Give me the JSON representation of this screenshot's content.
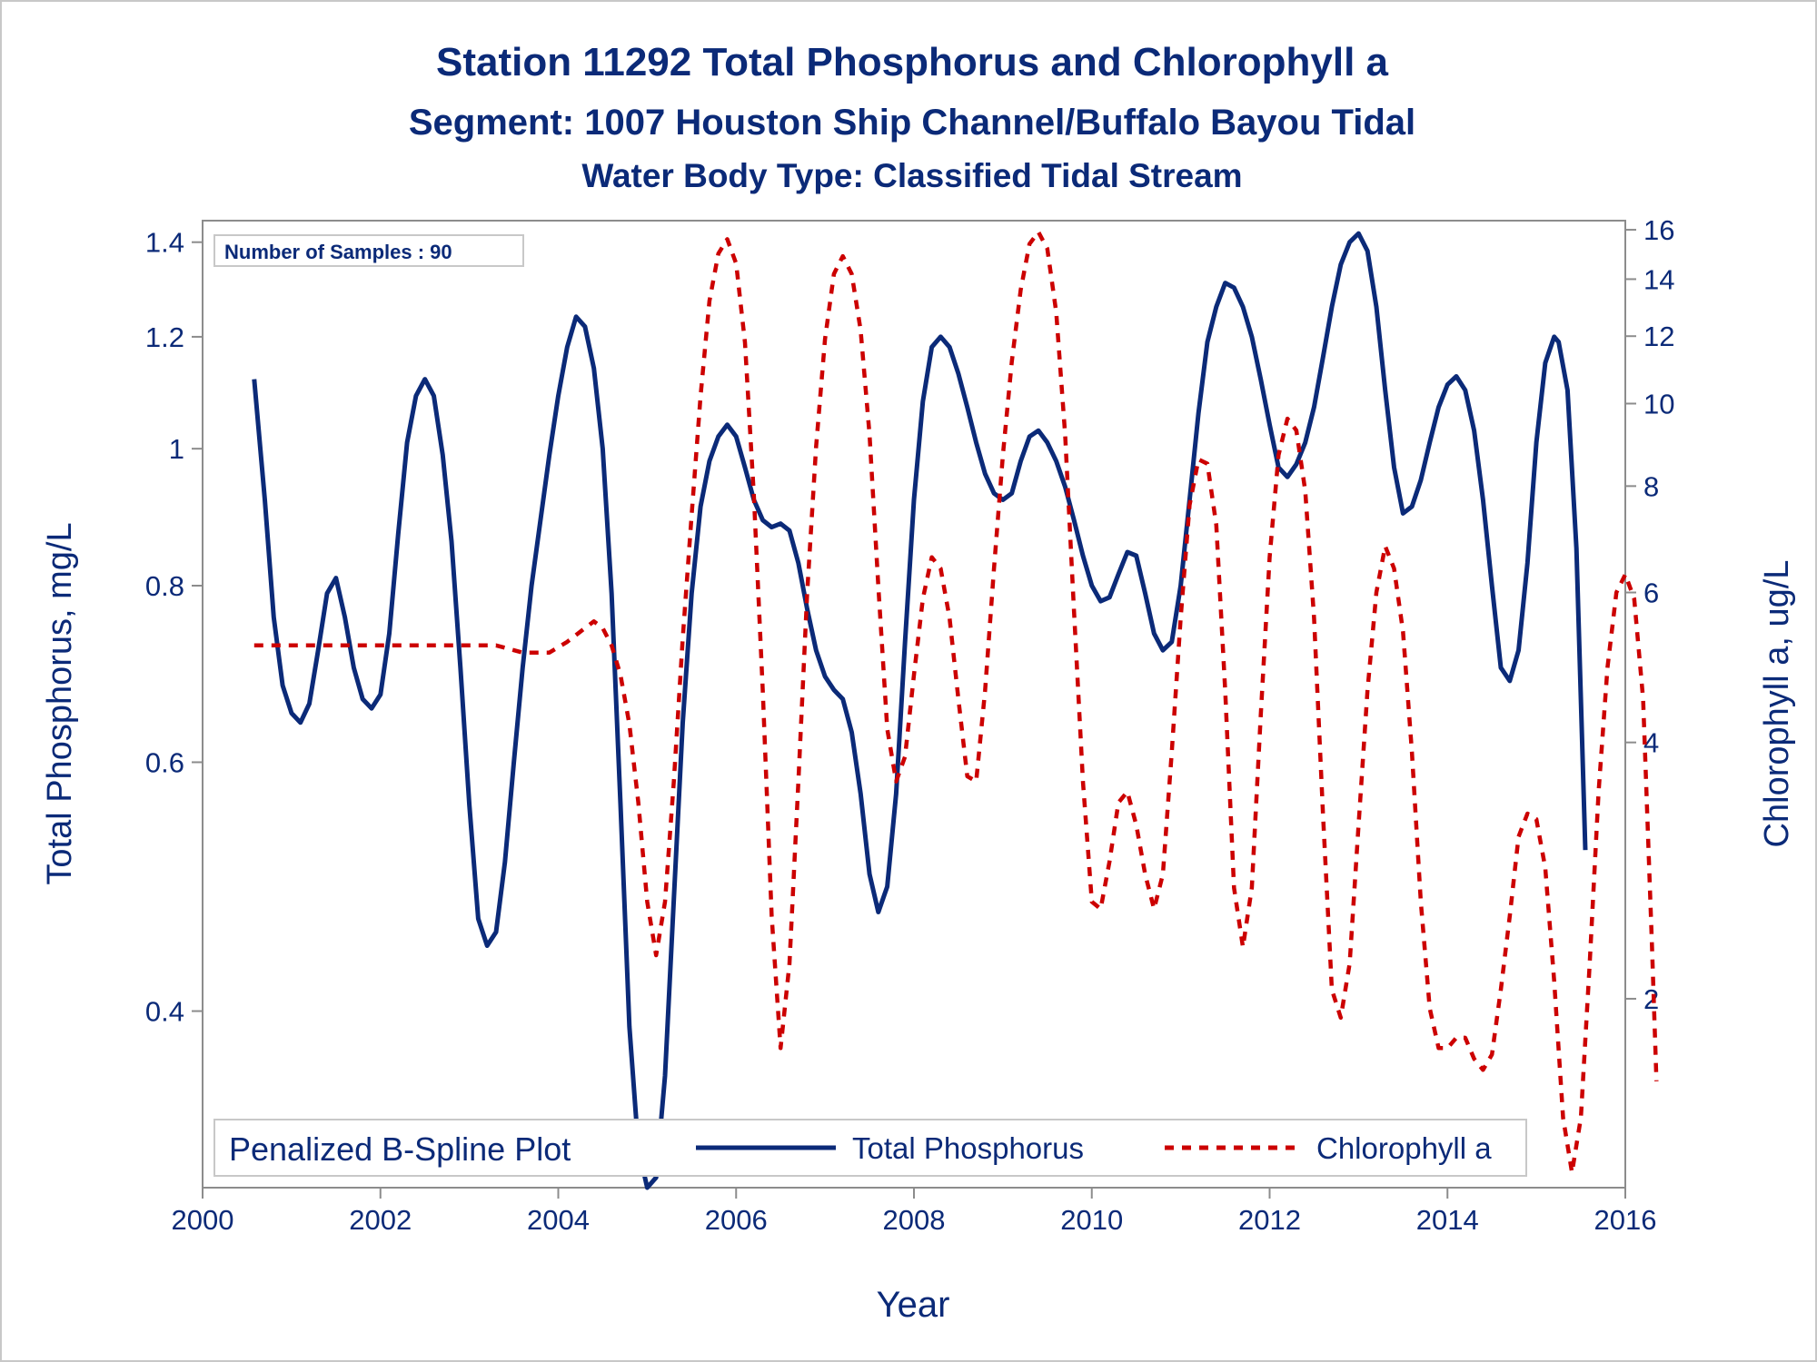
{
  "chart_data": {
    "type": "line",
    "title": "Station 11292  Total Phosphorus and Chlorophyll a",
    "subtitle": "Segment: 1007  Houston Ship Channel/Buffalo Bayou Tidal",
    "subtitle2": "Water Body Type: Classified Tidal Stream",
    "xlabel": "Year",
    "ylabel": "Total Phosphorus, mg/L",
    "y2label": "Chlorophyll a, ug/L",
    "xlim": [
      2000,
      2016
    ],
    "ylim": [
      0.3,
      1.45
    ],
    "y_scale": "log",
    "y2lim": [
      1.2,
      16.4
    ],
    "y2_scale": "log",
    "xticks": [
      "2000",
      "2002",
      "2004",
      "2006",
      "2008",
      "2010",
      "2012",
      "2014",
      "2016"
    ],
    "yticks": [
      "0.4",
      "0.6",
      "0.8",
      "1",
      "1.2",
      "1.4"
    ],
    "y2ticks": [
      "2",
      "4",
      "6",
      "8",
      "10",
      "12",
      "14",
      "16"
    ],
    "inset_label": "Number of Samples : 90",
    "legend": {
      "title": "Penalized B-Spline Plot",
      "position": "bottom-inside",
      "entries": [
        "Total Phosphorus",
        "Chlorophyll a"
      ]
    },
    "series": [
      {
        "name": "Total Phosphorus",
        "axis": "left",
        "color": "#0b2a78",
        "style": "solid",
        "points": [
          [
            2000.58,
            1.12
          ],
          [
            2000.7,
            0.92
          ],
          [
            2000.8,
            0.76
          ],
          [
            2000.9,
            0.68
          ],
          [
            2001.0,
            0.65
          ],
          [
            2001.1,
            0.64
          ],
          [
            2001.2,
            0.66
          ],
          [
            2001.3,
            0.72
          ],
          [
            2001.4,
            0.79
          ],
          [
            2001.5,
            0.81
          ],
          [
            2001.6,
            0.76
          ],
          [
            2001.7,
            0.7
          ],
          [
            2001.8,
            0.665
          ],
          [
            2001.9,
            0.655
          ],
          [
            2002.0,
            0.67
          ],
          [
            2002.1,
            0.74
          ],
          [
            2002.2,
            0.87
          ],
          [
            2002.3,
            1.01
          ],
          [
            2002.4,
            1.09
          ],
          [
            2002.5,
            1.12
          ],
          [
            2002.6,
            1.09
          ],
          [
            2002.7,
            0.99
          ],
          [
            2002.8,
            0.86
          ],
          [
            2002.9,
            0.7
          ],
          [
            2003.0,
            0.56
          ],
          [
            2003.1,
            0.465
          ],
          [
            2003.2,
            0.445
          ],
          [
            2003.3,
            0.455
          ],
          [
            2003.4,
            0.51
          ],
          [
            2003.5,
            0.6
          ],
          [
            2003.6,
            0.7
          ],
          [
            2003.7,
            0.8
          ],
          [
            2003.8,
            0.89
          ],
          [
            2003.9,
            0.99
          ],
          [
            2004.0,
            1.09
          ],
          [
            2004.1,
            1.18
          ],
          [
            2004.2,
            1.24
          ],
          [
            2004.3,
            1.22
          ],
          [
            2004.4,
            1.14
          ],
          [
            2004.5,
            1.0
          ],
          [
            2004.6,
            0.79
          ],
          [
            2004.7,
            0.56
          ],
          [
            2004.8,
            0.39
          ],
          [
            2004.9,
            0.32
          ],
          [
            2005.0,
            0.3
          ],
          [
            2005.1,
            0.305
          ],
          [
            2005.2,
            0.36
          ],
          [
            2005.3,
            0.48
          ],
          [
            2005.4,
            0.64
          ],
          [
            2005.5,
            0.79
          ],
          [
            2005.6,
            0.91
          ],
          [
            2005.7,
            0.98
          ],
          [
            2005.8,
            1.02
          ],
          [
            2005.9,
            1.04
          ],
          [
            2006.0,
            1.02
          ],
          [
            2006.1,
            0.97
          ],
          [
            2006.2,
            0.92
          ],
          [
            2006.3,
            0.89
          ],
          [
            2006.4,
            0.88
          ],
          [
            2006.5,
            0.885
          ],
          [
            2006.6,
            0.875
          ],
          [
            2006.7,
            0.83
          ],
          [
            2006.8,
            0.77
          ],
          [
            2006.9,
            0.72
          ],
          [
            2007.0,
            0.69
          ],
          [
            2007.1,
            0.675
          ],
          [
            2007.2,
            0.665
          ],
          [
            2007.3,
            0.63
          ],
          [
            2007.4,
            0.57
          ],
          [
            2007.5,
            0.5
          ],
          [
            2007.6,
            0.47
          ],
          [
            2007.7,
            0.49
          ],
          [
            2007.8,
            0.57
          ],
          [
            2007.9,
            0.73
          ],
          [
            2008.0,
            0.92
          ],
          [
            2008.1,
            1.08
          ],
          [
            2008.2,
            1.18
          ],
          [
            2008.3,
            1.2
          ],
          [
            2008.4,
            1.18
          ],
          [
            2008.5,
            1.13
          ],
          [
            2008.6,
            1.07
          ],
          [
            2008.7,
            1.01
          ],
          [
            2008.8,
            0.96
          ],
          [
            2008.9,
            0.93
          ],
          [
            2009.0,
            0.92
          ],
          [
            2009.1,
            0.93
          ],
          [
            2009.2,
            0.98
          ],
          [
            2009.3,
            1.02
          ],
          [
            2009.4,
            1.03
          ],
          [
            2009.5,
            1.01
          ],
          [
            2009.6,
            0.98
          ],
          [
            2009.7,
            0.94
          ],
          [
            2009.8,
            0.89
          ],
          [
            2009.9,
            0.84
          ],
          [
            2010.0,
            0.8
          ],
          [
            2010.1,
            0.78
          ],
          [
            2010.2,
            0.785
          ],
          [
            2010.3,
            0.815
          ],
          [
            2010.4,
            0.845
          ],
          [
            2010.5,
            0.84
          ],
          [
            2010.6,
            0.79
          ],
          [
            2010.7,
            0.74
          ],
          [
            2010.8,
            0.72
          ],
          [
            2010.9,
            0.73
          ],
          [
            2011.0,
            0.8
          ],
          [
            2011.1,
            0.92
          ],
          [
            2011.2,
            1.06
          ],
          [
            2011.3,
            1.19
          ],
          [
            2011.4,
            1.26
          ],
          [
            2011.5,
            1.31
          ],
          [
            2011.6,
            1.3
          ],
          [
            2011.7,
            1.26
          ],
          [
            2011.8,
            1.2
          ],
          [
            2011.9,
            1.12
          ],
          [
            2012.0,
            1.04
          ],
          [
            2012.1,
            0.97
          ],
          [
            2012.2,
            0.955
          ],
          [
            2012.3,
            0.975
          ],
          [
            2012.4,
            1.01
          ],
          [
            2012.5,
            1.07
          ],
          [
            2012.6,
            1.16
          ],
          [
            2012.7,
            1.26
          ],
          [
            2012.8,
            1.35
          ],
          [
            2012.9,
            1.4
          ],
          [
            2013.0,
            1.42
          ],
          [
            2013.1,
            1.38
          ],
          [
            2013.2,
            1.26
          ],
          [
            2013.3,
            1.1
          ],
          [
            2013.4,
            0.97
          ],
          [
            2013.5,
            0.9
          ],
          [
            2013.6,
            0.91
          ],
          [
            2013.7,
            0.95
          ],
          [
            2013.8,
            1.01
          ],
          [
            2013.9,
            1.07
          ],
          [
            2014.0,
            1.11
          ],
          [
            2014.1,
            1.125
          ],
          [
            2014.2,
            1.1
          ],
          [
            2014.3,
            1.03
          ],
          [
            2014.4,
            0.92
          ],
          [
            2014.5,
            0.8
          ],
          [
            2014.6,
            0.7
          ],
          [
            2014.7,
            0.685
          ],
          [
            2014.8,
            0.72
          ],
          [
            2014.9,
            0.83
          ],
          [
            2015.0,
            1.01
          ],
          [
            2015.1,
            1.15
          ],
          [
            2015.2,
            1.2
          ],
          [
            2015.25,
            1.19
          ],
          [
            2015.35,
            1.1
          ],
          [
            2015.45,
            0.85
          ],
          [
            2015.55,
            0.52
          ]
        ]
      },
      {
        "name": "Chlorophyll a",
        "axis": "right",
        "color": "#cc0000",
        "style": "dashed",
        "points": [
          [
            2000.58,
            5.2
          ],
          [
            2001.0,
            5.2
          ],
          [
            2001.5,
            5.2
          ],
          [
            2002.0,
            5.2
          ],
          [
            2002.5,
            5.2
          ],
          [
            2003.0,
            5.2
          ],
          [
            2003.3,
            5.2
          ],
          [
            2003.6,
            5.1
          ],
          [
            2003.9,
            5.1
          ],
          [
            2004.1,
            5.25
          ],
          [
            2004.3,
            5.45
          ],
          [
            2004.4,
            5.55
          ],
          [
            2004.5,
            5.45
          ],
          [
            2004.6,
            5.2
          ],
          [
            2004.7,
            4.8
          ],
          [
            2004.8,
            4.2
          ],
          [
            2004.9,
            3.4
          ],
          [
            2005.0,
            2.6
          ],
          [
            2005.1,
            2.25
          ],
          [
            2005.2,
            2.6
          ],
          [
            2005.3,
            3.6
          ],
          [
            2005.4,
            5.3
          ],
          [
            2005.5,
            7.4
          ],
          [
            2005.6,
            10.2
          ],
          [
            2005.7,
            13.2
          ],
          [
            2005.8,
            15.0
          ],
          [
            2005.9,
            15.6
          ],
          [
            2006.0,
            14.6
          ],
          [
            2006.1,
            11.8
          ],
          [
            2006.2,
            7.8
          ],
          [
            2006.3,
            4.6
          ],
          [
            2006.4,
            2.5
          ],
          [
            2006.5,
            1.75
          ],
          [
            2006.6,
            2.2
          ],
          [
            2006.7,
            3.6
          ],
          [
            2006.8,
            6.0
          ],
          [
            2006.9,
            8.9
          ],
          [
            2007.0,
            11.9
          ],
          [
            2007.1,
            14.2
          ],
          [
            2007.2,
            14.9
          ],
          [
            2007.3,
            14.2
          ],
          [
            2007.4,
            12.2
          ],
          [
            2007.5,
            9.2
          ],
          [
            2007.6,
            6.1
          ],
          [
            2007.7,
            4.15
          ],
          [
            2007.8,
            3.6
          ],
          [
            2007.9,
            3.85
          ],
          [
            2008.0,
            4.8
          ],
          [
            2008.1,
            5.9
          ],
          [
            2008.2,
            6.6
          ],
          [
            2008.3,
            6.4
          ],
          [
            2008.4,
            5.6
          ],
          [
            2008.5,
            4.5
          ],
          [
            2008.6,
            3.65
          ],
          [
            2008.7,
            3.6
          ],
          [
            2008.8,
            4.6
          ],
          [
            2008.9,
            6.4
          ],
          [
            2009.0,
            8.7
          ],
          [
            2009.1,
            11.2
          ],
          [
            2009.2,
            13.6
          ],
          [
            2009.3,
            15.4
          ],
          [
            2009.4,
            15.9
          ],
          [
            2009.5,
            15.2
          ],
          [
            2009.6,
            12.8
          ],
          [
            2009.7,
            9.2
          ],
          [
            2009.8,
            5.7
          ],
          [
            2009.9,
            3.6
          ],
          [
            2010.0,
            2.6
          ],
          [
            2010.1,
            2.55
          ],
          [
            2010.2,
            2.9
          ],
          [
            2010.3,
            3.4
          ],
          [
            2010.4,
            3.5
          ],
          [
            2010.5,
            3.2
          ],
          [
            2010.6,
            2.8
          ],
          [
            2010.7,
            2.55
          ],
          [
            2010.8,
            2.8
          ],
          [
            2010.9,
            3.9
          ],
          [
            2011.0,
            5.6
          ],
          [
            2011.1,
            7.6
          ],
          [
            2011.2,
            8.6
          ],
          [
            2011.3,
            8.5
          ],
          [
            2011.4,
            7.2
          ],
          [
            2011.5,
            4.6
          ],
          [
            2011.6,
            2.7
          ],
          [
            2011.7,
            2.3
          ],
          [
            2011.8,
            2.7
          ],
          [
            2011.9,
            4.3
          ],
          [
            2012.0,
            6.6
          ],
          [
            2012.1,
            8.7
          ],
          [
            2012.2,
            9.6
          ],
          [
            2012.3,
            9.3
          ],
          [
            2012.4,
            7.9
          ],
          [
            2012.5,
            5.6
          ],
          [
            2012.6,
            3.3
          ],
          [
            2012.7,
            2.05
          ],
          [
            2012.8,
            1.9
          ],
          [
            2012.9,
            2.2
          ],
          [
            2013.0,
            3.2
          ],
          [
            2013.1,
            4.6
          ],
          [
            2013.2,
            6.0
          ],
          [
            2013.3,
            6.8
          ],
          [
            2013.4,
            6.4
          ],
          [
            2013.5,
            5.4
          ],
          [
            2013.6,
            3.9
          ],
          [
            2013.7,
            2.6
          ],
          [
            2013.8,
            1.95
          ],
          [
            2013.9,
            1.75
          ],
          [
            2014.0,
            1.75
          ],
          [
            2014.1,
            1.8
          ],
          [
            2014.2,
            1.8
          ],
          [
            2014.3,
            1.7
          ],
          [
            2014.4,
            1.65
          ],
          [
            2014.5,
            1.72
          ],
          [
            2014.6,
            2.05
          ],
          [
            2014.7,
            2.5
          ],
          [
            2014.8,
            3.1
          ],
          [
            2014.9,
            3.3
          ],
          [
            2015.0,
            3.25
          ],
          [
            2015.1,
            2.85
          ],
          [
            2015.2,
            2.1
          ],
          [
            2015.3,
            1.45
          ],
          [
            2015.4,
            1.25
          ],
          [
            2015.5,
            1.45
          ],
          [
            2015.6,
            2.2
          ],
          [
            2015.7,
            3.5
          ],
          [
            2015.8,
            4.9
          ],
          [
            2015.9,
            6.0
          ],
          [
            2016.0,
            6.3
          ],
          [
            2016.1,
            5.9
          ],
          [
            2016.2,
            4.5
          ],
          [
            2016.3,
            2.3
          ],
          [
            2016.35,
            1.6
          ]
        ]
      }
    ]
  }
}
